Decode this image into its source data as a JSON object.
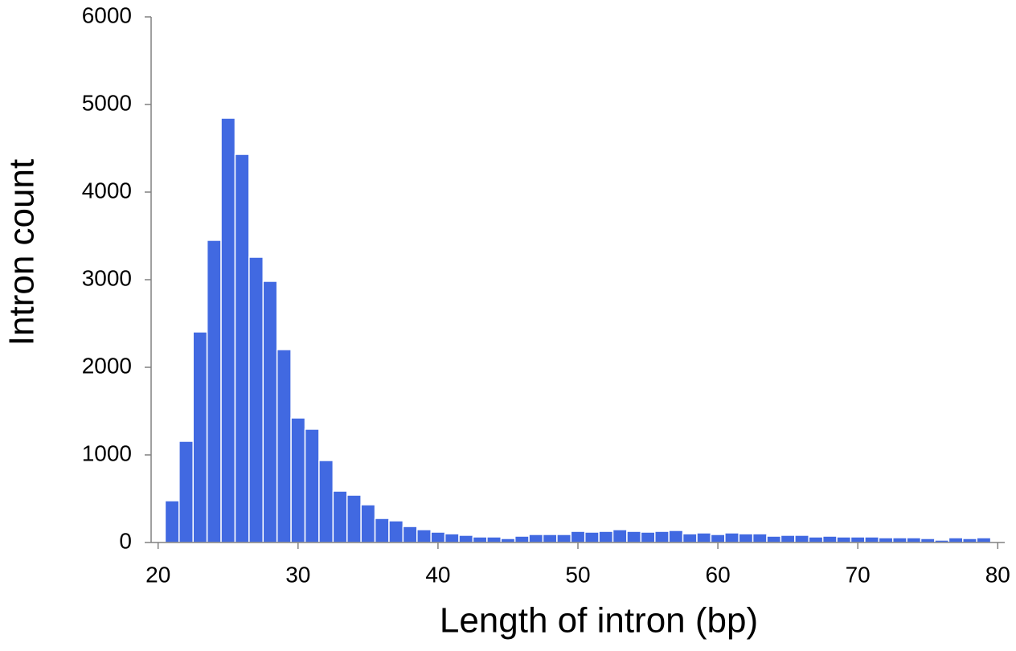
{
  "chart_data": {
    "type": "histogram",
    "xlabel": "Length of intron (bp)",
    "ylabel": "Intron count",
    "bins": [
      20.5,
      21.5,
      22.5,
      23.5,
      24.5,
      25.5,
      26.5,
      27.5,
      28.5,
      29.5,
      30.5,
      31.5,
      32.5,
      33.5,
      34.5,
      35.5,
      36.5,
      37.5,
      38.5,
      39.5,
      40.5,
      41.5,
      42.5,
      43.5,
      44.5,
      45.5,
      46.5,
      47.5,
      48.5,
      49.5,
      50.5,
      51.5,
      52.5,
      53.5,
      54.5,
      55.5,
      56.5,
      57.5,
      58.5,
      59.5,
      60.5,
      61.5,
      62.5,
      63.5,
      64.5,
      65.5,
      66.5,
      67.5,
      68.5,
      69.5,
      70.5,
      71.5,
      72.5,
      73.5,
      74.5,
      75.5,
      76.5,
      77.5,
      78.5,
      79.5
    ],
    "values": [
      477,
      1156,
      2404,
      3450,
      4844,
      4431,
      3257,
      2982,
      2202,
      1422,
      1294,
      936,
      587,
      541,
      431,
      275,
      248,
      183,
      147,
      119,
      100,
      83,
      64,
      64,
      46,
      73,
      92,
      92,
      92,
      128,
      119,
      128,
      147,
      128,
      119,
      128,
      138,
      100,
      110,
      92,
      110,
      100,
      100,
      73,
      83,
      83,
      64,
      73,
      64,
      64,
      64,
      55,
      55,
      55,
      46,
      28,
      55,
      46,
      55
    ],
    "color": "#4169e1",
    "xlim": [
      19.5,
      80.5
    ],
    "xticks": [
      20,
      30,
      40,
      50,
      60,
      70,
      80
    ],
    "ylim": [
      0,
      6000
    ],
    "yticks": [
      0,
      1000,
      2000,
      3000,
      4000,
      5000,
      6000
    ],
    "grid": false
  }
}
